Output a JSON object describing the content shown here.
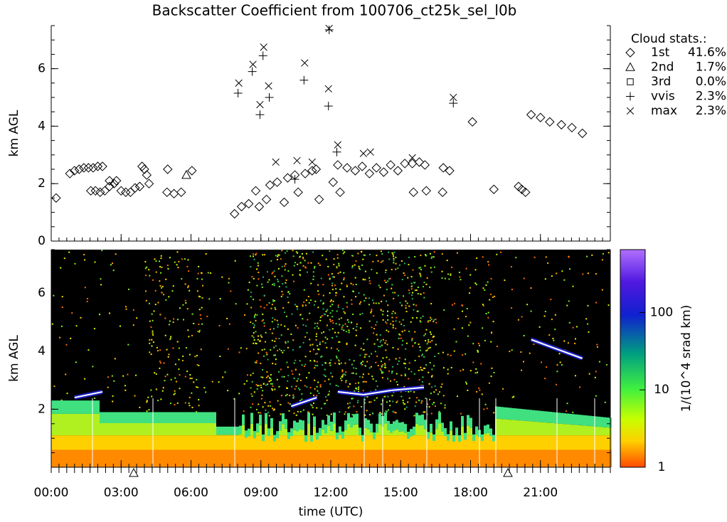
{
  "chart_data": [
    {
      "type": "scatter",
      "title": "Backscatter Coefficient from 100706_ct25k_sel_l0b",
      "y_label": "km AGL",
      "xlim": [
        0,
        24
      ],
      "ylim": [
        0,
        7.5
      ],
      "yticks": [
        0,
        2,
        4,
        6
      ],
      "legend_title": "Cloud stats.:",
      "series": [
        {
          "name": "1st",
          "stat": "41.6%",
          "marker": "diamond",
          "color": "#000000",
          "x": [
            0.21,
            0.8,
            1.0,
            1.2,
            1.4,
            1.6,
            1.8,
            2.0,
            2.2,
            1.7,
            1.9,
            2.1,
            2.3,
            2.5,
            2.7,
            3.0,
            3.2,
            3.4,
            3.6,
            3.8,
            2.5,
            2.8,
            3.9,
            4.0,
            4.1,
            4.2,
            5.0,
            4.97,
            5.27,
            5.58,
            6.04,
            7.87,
            8.17,
            8.48,
            8.78,
            8.93,
            9.24,
            9.39,
            9.7,
            10.0,
            10.15,
            10.46,
            10.6,
            10.9,
            11.2,
            11.37,
            11.5,
            12.1,
            12.3,
            12.4,
            12.7,
            13.05,
            13.35,
            13.66,
            13.96,
            14.27,
            14.57,
            14.88,
            15.18,
            15.5,
            15.8,
            16.04,
            15.55,
            16.1,
            16.83,
            17.1,
            16.8,
            18.08,
            19.0,
            20.06,
            20.2,
            20.36,
            20.6,
            21.0,
            21.4,
            21.9,
            22.35,
            22.8
          ],
          "values": [
            1.5,
            2.35,
            2.45,
            2.5,
            2.55,
            2.55,
            2.55,
            2.6,
            2.6,
            1.75,
            1.75,
            1.7,
            1.75,
            1.9,
            2.0,
            1.75,
            1.7,
            1.7,
            1.85,
            1.9,
            2.1,
            2.1,
            2.6,
            2.5,
            2.3,
            2.0,
            2.5,
            1.7,
            1.65,
            1.7,
            2.45,
            0.95,
            1.2,
            1.3,
            1.75,
            1.2,
            1.45,
            1.95,
            2.05,
            1.35,
            2.2,
            2.3,
            1.7,
            2.35,
            2.45,
            2.5,
            1.45,
            2.05,
            2.65,
            1.7,
            2.55,
            2.45,
            2.6,
            2.35,
            2.55,
            2.4,
            2.65,
            2.45,
            2.7,
            2.7,
            2.75,
            2.65,
            1.7,
            1.75,
            2.55,
            2.45,
            1.7,
            4.15,
            1.8,
            1.9,
            1.8,
            1.7,
            4.4,
            4.3,
            4.15,
            4.05,
            3.95,
            3.75
          ]
        },
        {
          "name": "2nd",
          "stat": "1.7%",
          "marker": "triangle",
          "color": "#000000",
          "x": [
            5.8
          ],
          "values": [
            2.3
          ]
        },
        {
          "name": "3rd",
          "stat": "0.0%",
          "marker": "square",
          "color": "#000000",
          "x": [],
          "values": []
        },
        {
          "name": "vvis",
          "stat": "2.3%",
          "marker": "plus",
          "color": "#000000",
          "x": [
            8.02,
            8.63,
            8.96,
            9.09,
            9.36,
            10.85,
            11.9,
            11.93,
            12.26,
            17.26,
            10.46
          ],
          "values": [
            5.15,
            5.9,
            4.4,
            6.45,
            5.0,
            5.6,
            4.7,
            7.35,
            3.1,
            4.8,
            2.15
          ]
        },
        {
          "name": "max",
          "stat": "2.3%",
          "marker": "cross",
          "color": "#000000",
          "x": [
            8.05,
            8.66,
            8.96,
            9.12,
            9.33,
            10.88,
            11.9,
            11.93,
            12.3,
            17.26,
            9.64,
            10.55,
            11.2,
            13.4,
            13.7,
            15.5
          ],
          "values": [
            5.5,
            6.15,
            4.75,
            6.75,
            5.4,
            6.2,
            5.3,
            7.4,
            3.35,
            5.0,
            2.75,
            2.8,
            2.75,
            3.05,
            3.1,
            2.9
          ]
        }
      ]
    },
    {
      "type": "heatmap",
      "y_label": "km AGL",
      "x_label": "time (UTC)",
      "xlim": [
        0,
        24
      ],
      "ylim": [
        0,
        7.5
      ],
      "yticks": [
        2,
        4,
        6
      ],
      "xticks": [
        {
          "value": 0,
          "label": "00:00"
        },
        {
          "value": 3,
          "label": "03:00"
        },
        {
          "value": 6,
          "label": "06:00"
        },
        {
          "value": 9,
          "label": "09:00"
        },
        {
          "value": 12,
          "label": "12:00"
        },
        {
          "value": 15,
          "label": "15:00"
        },
        {
          "value": 18,
          "label": "18:00"
        },
        {
          "value": 21,
          "label": "21:00"
        }
      ],
      "colorbar": {
        "label": "1/(10^4 srad km)",
        "log": true,
        "lim": [
          1,
          650
        ],
        "ticks": [
          1,
          10,
          100
        ]
      }
    }
  ]
}
